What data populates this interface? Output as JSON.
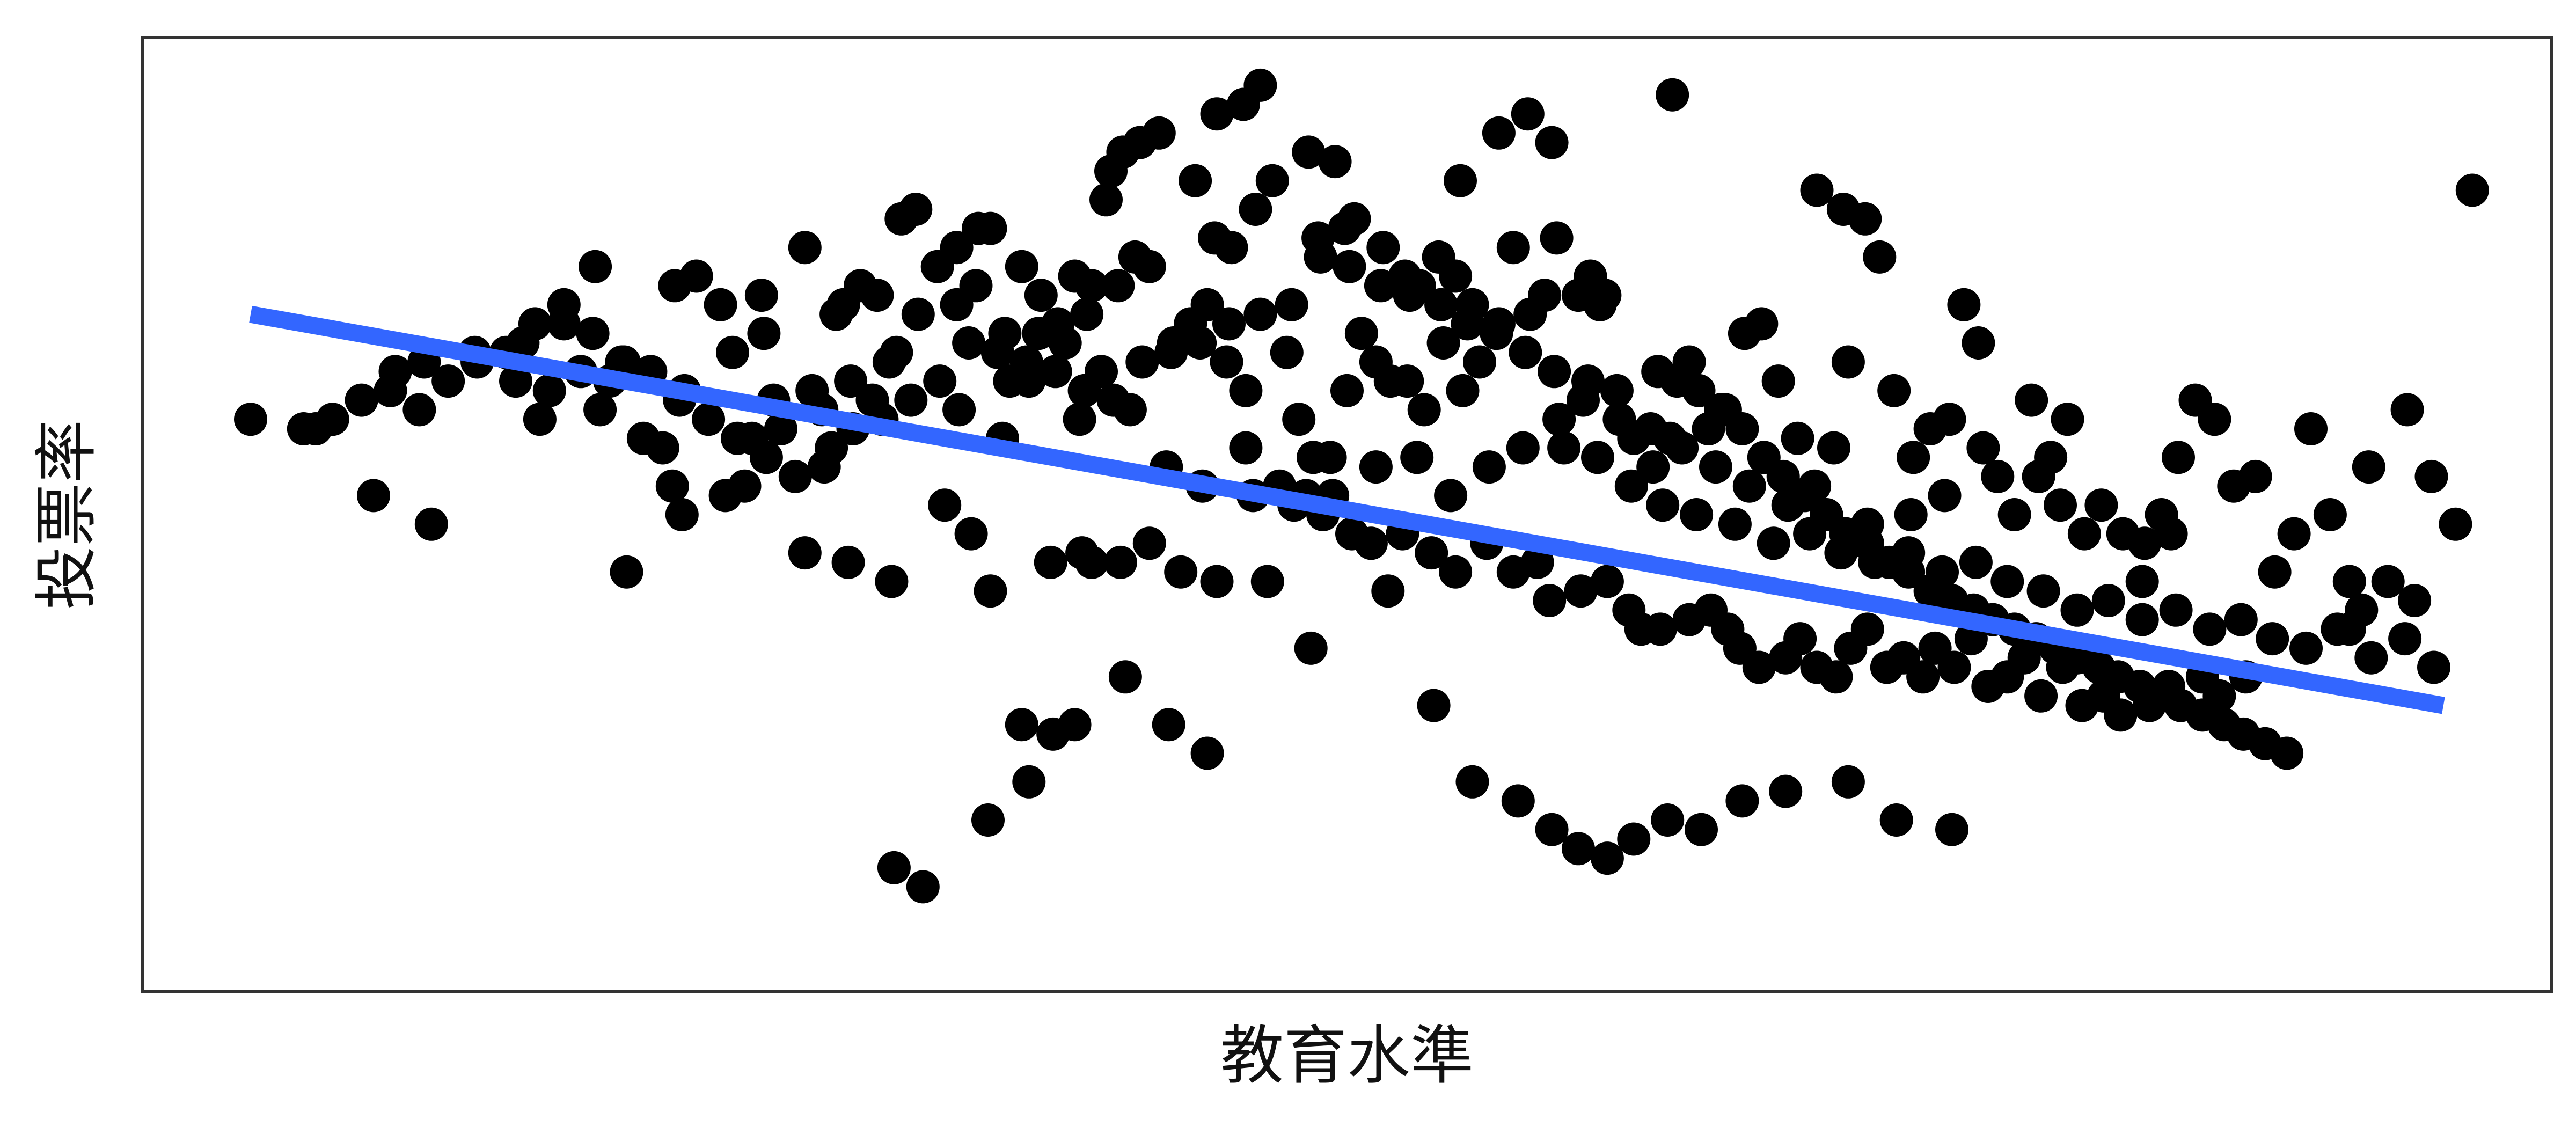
{
  "chart_data": {
    "type": "scatter",
    "title": "",
    "xlabel": "教育水準",
    "ylabel": "投票率",
    "xlim": [
      0,
      100
    ],
    "ylim": [
      0,
      100
    ],
    "axis_ticks": false,
    "grid": false,
    "legend": "none",
    "point_color": "#000000",
    "fit_line": {
      "color": "#3366ff",
      "x": [
        4.5,
        95.5
      ],
      "y": [
        71,
        30
      ]
    },
    "points": [
      [
        4.5,
        60
      ],
      [
        7.2,
        59
      ],
      [
        9.6,
        52
      ],
      [
        12,
        49
      ],
      [
        15.5,
        64
      ],
      [
        16.5,
        60
      ],
      [
        17.5,
        70
      ],
      [
        18.2,
        65
      ],
      [
        19.4,
        64
      ],
      [
        20,
        66
      ],
      [
        22,
        53
      ],
      [
        22.5,
        63
      ],
      [
        23,
        75
      ],
      [
        24,
        72
      ],
      [
        24.5,
        67
      ],
      [
        25.8,
        69
      ],
      [
        26.2,
        62
      ],
      [
        27.5,
        78
      ],
      [
        28.2,
        61
      ],
      [
        28.8,
        71
      ],
      [
        29.8,
        74
      ],
      [
        30.5,
        73
      ],
      [
        31.3,
        67
      ],
      [
        32.2,
        71
      ],
      [
        33,
        76
      ],
      [
        33.8,
        72
      ],
      [
        34.6,
        74
      ],
      [
        35.2,
        80
      ],
      [
        35.8,
        69
      ],
      [
        36,
        64
      ],
      [
        36.5,
        76
      ],
      [
        37.3,
        73
      ],
      [
        38,
        70
      ],
      [
        38.7,
        75
      ],
      [
        39.4,
        74
      ],
      [
        39.8,
        65
      ],
      [
        40,
        83
      ],
      [
        40.5,
        74
      ],
      [
        41.2,
        77
      ],
      [
        41.8,
        76
      ],
      [
        42.8,
        68
      ],
      [
        43.5,
        70
      ],
      [
        44.2,
        72
      ],
      [
        45,
        66
      ],
      [
        45.8,
        63
      ],
      [
        46.2,
        82
      ],
      [
        46.9,
        85
      ],
      [
        47.5,
        67
      ],
      [
        48,
        60
      ],
      [
        48.6,
        56
      ],
      [
        49.3,
        56
      ],
      [
        50,
        63
      ],
      [
        50.6,
        69
      ],
      [
        51.2,
        66
      ],
      [
        51.8,
        64
      ],
      [
        52.5,
        64
      ],
      [
        53.2,
        61
      ],
      [
        54,
        68
      ],
      [
        54.8,
        63
      ],
      [
        55.5,
        66
      ],
      [
        56.3,
        70
      ],
      [
        56.9,
        78
      ],
      [
        57.6,
        71
      ],
      [
        58.2,
        73
      ],
      [
        59,
        57
      ],
      [
        59.8,
        62
      ],
      [
        60.5,
        72
      ],
      [
        61.2,
        63
      ],
      [
        61.9,
        58
      ],
      [
        62.7,
        55
      ],
      [
        63.4,
        58
      ],
      [
        64.2,
        66
      ],
      [
        65,
        59
      ],
      [
        65.7,
        61
      ],
      [
        66.5,
        69
      ],
      [
        67.2,
        70
      ],
      [
        67.9,
        64
      ],
      [
        68.7,
        58
      ],
      [
        69.4,
        53
      ],
      [
        70.2,
        57
      ],
      [
        70.8,
        66
      ],
      [
        71.5,
        81
      ],
      [
        72.1,
        77
      ],
      [
        72.7,
        63
      ],
      [
        73.5,
        56
      ],
      [
        74.2,
        59
      ],
      [
        75,
        60
      ],
      [
        75.6,
        72
      ],
      [
        76.2,
        68
      ],
      [
        77,
        54
      ],
      [
        77.7,
        50
      ],
      [
        78.4,
        62
      ],
      [
        79.2,
        56
      ],
      [
        79.9,
        60
      ],
      [
        80.6,
        48
      ],
      [
        81.3,
        51
      ],
      [
        82.2,
        48
      ],
      [
        83,
        43
      ],
      [
        83.8,
        50
      ],
      [
        84.5,
        56
      ],
      [
        85.2,
        62
      ],
      [
        86,
        60
      ],
      [
        86.8,
        53
      ],
      [
        87.7,
        54
      ],
      [
        88.5,
        44
      ],
      [
        89.3,
        48
      ],
      [
        90,
        59
      ],
      [
        90.8,
        50
      ],
      [
        91.6,
        43
      ],
      [
        92.4,
        55
      ],
      [
        93.2,
        43
      ],
      [
        94,
        61
      ],
      [
        95,
        54
      ],
      [
        96.7,
        84
      ],
      [
        33.8,
        78
      ],
      [
        34.7,
        80
      ],
      [
        32.1,
        82
      ],
      [
        31.5,
        81
      ],
      [
        18.8,
        76
      ],
      [
        22.1,
        74
      ],
      [
        25.7,
        73
      ],
      [
        29.1,
        72
      ],
      [
        10.5,
        65
      ],
      [
        11.7,
        66
      ],
      [
        13.8,
        67
      ],
      [
        15.8,
        68
      ],
      [
        16.9,
        63
      ],
      [
        19,
        61
      ],
      [
        20.8,
        58
      ],
      [
        21.6,
        57
      ],
      [
        25.3,
        58
      ],
      [
        27.8,
        63
      ],
      [
        29.4,
        64
      ],
      [
        31,
        66
      ],
      [
        36.8,
        64
      ],
      [
        37.2,
        69
      ],
      [
        38.3,
        68
      ],
      [
        39.2,
        71
      ],
      [
        44.5,
        79
      ],
      [
        45.2,
        78
      ],
      [
        40.2,
        86
      ],
      [
        40.7,
        88
      ],
      [
        41.4,
        89
      ],
      [
        42.2,
        90
      ],
      [
        43.7,
        85
      ],
      [
        44.6,
        92
      ],
      [
        45.7,
        93
      ],
      [
        46.4,
        95
      ],
      [
        48.4,
        88
      ],
      [
        49.5,
        87
      ],
      [
        48.8,
        79
      ],
      [
        49.9,
        80
      ],
      [
        50.3,
        81
      ],
      [
        51.5,
        78
      ],
      [
        52.4,
        75
      ],
      [
        53,
        74
      ],
      [
        53.8,
        77
      ],
      [
        54.5,
        75
      ],
      [
        55.2,
        72
      ],
      [
        58.7,
        79
      ],
      [
        59.6,
        73
      ],
      [
        60.1,
        75
      ],
      [
        60.7,
        73
      ],
      [
        54.7,
        85
      ],
      [
        56.3,
        90
      ],
      [
        57.5,
        92
      ],
      [
        58.5,
        89
      ],
      [
        63.5,
        94
      ],
      [
        69.5,
        84
      ],
      [
        70.6,
        82
      ],
      [
        45.8,
        57
      ],
      [
        47.2,
        53
      ],
      [
        48.3,
        52
      ],
      [
        49,
        50
      ],
      [
        50.2,
        48
      ],
      [
        51,
        47
      ],
      [
        52.3,
        48
      ],
      [
        53.5,
        46
      ],
      [
        54.5,
        44
      ],
      [
        55.8,
        47
      ],
      [
        56.9,
        44
      ],
      [
        57.9,
        45
      ],
      [
        58.4,
        41
      ],
      [
        59.7,
        42
      ],
      [
        60.8,
        43
      ],
      [
        61.7,
        40
      ],
      [
        62.2,
        38
      ],
      [
        63,
        38
      ],
      [
        64.2,
        39
      ],
      [
        65.1,
        40
      ],
      [
        65.8,
        38
      ],
      [
        66.3,
        36
      ],
      [
        67.1,
        34
      ],
      [
        68.2,
        35
      ],
      [
        68.8,
        37
      ],
      [
        69.5,
        34
      ],
      [
        70.3,
        33
      ],
      [
        70.9,
        36
      ],
      [
        71.6,
        38
      ],
      [
        72.4,
        34
      ],
      [
        73.1,
        35
      ],
      [
        73.9,
        33
      ],
      [
        74.4,
        36
      ],
      [
        75.2,
        34
      ],
      [
        75.9,
        37
      ],
      [
        76.6,
        32
      ],
      [
        77.4,
        33
      ],
      [
        78.1,
        35
      ],
      [
        78.8,
        31
      ],
      [
        79.7,
        34
      ],
      [
        80.5,
        30
      ],
      [
        81.4,
        31
      ],
      [
        82.1,
        29
      ],
      [
        83.3,
        30
      ],
      [
        84.1,
        32
      ],
      [
        85.5,
        33
      ],
      [
        86.2,
        31
      ],
      [
        87.3,
        33
      ],
      [
        36.5,
        28
      ],
      [
        37.8,
        27
      ],
      [
        39.4,
        45
      ],
      [
        40.6,
        45
      ],
      [
        41.8,
        47
      ],
      [
        43.1,
        44
      ],
      [
        44.6,
        43
      ],
      [
        46.7,
        43
      ],
      [
        48.5,
        36
      ],
      [
        51.7,
        42
      ],
      [
        53.6,
        30
      ],
      [
        55.2,
        22
      ],
      [
        57.1,
        20
      ],
      [
        58.5,
        17
      ],
      [
        59.6,
        15
      ],
      [
        60.8,
        14
      ],
      [
        61.9,
        16
      ],
      [
        63.3,
        18
      ],
      [
        64.7,
        17
      ],
      [
        66.4,
        20
      ],
      [
        68.2,
        21
      ],
      [
        70.8,
        22
      ],
      [
        72.8,
        18
      ],
      [
        75.1,
        17
      ],
      [
        31.2,
        13
      ],
      [
        32.4,
        11
      ],
      [
        35.1,
        18
      ],
      [
        36.8,
        22
      ],
      [
        38.7,
        28
      ],
      [
        40.8,
        33
      ],
      [
        42.6,
        28
      ],
      [
        44.2,
        25
      ],
      [
        24.2,
        52
      ],
      [
        27.5,
        46
      ],
      [
        29.3,
        45
      ],
      [
        31.1,
        43
      ],
      [
        33.3,
        51
      ],
      [
        34.4,
        48
      ],
      [
        35.2,
        42
      ],
      [
        37.7,
        45
      ],
      [
        39,
        46
      ],
      [
        20.1,
        44
      ],
      [
        22.4,
        50
      ],
      [
        25,
        53
      ],
      [
        26.5,
        59
      ],
      [
        28.6,
        57
      ],
      [
        30.3,
        62
      ],
      [
        33.9,
        61
      ],
      [
        35.7,
        58
      ],
      [
        38.9,
        60
      ],
      [
        41,
        61
      ],
      [
        42.5,
        55
      ],
      [
        44,
        53
      ],
      [
        46.1,
        52
      ],
      [
        47.8,
        51
      ],
      [
        49.4,
        52
      ],
      [
        51.2,
        55
      ],
      [
        52.9,
        56
      ],
      [
        54.3,
        52
      ],
      [
        55.9,
        55
      ],
      [
        57.3,
        57
      ],
      [
        58.8,
        60
      ],
      [
        60.4,
        56
      ],
      [
        61.8,
        53
      ],
      [
        63.1,
        51
      ],
      [
        64.5,
        50
      ],
      [
        66.1,
        49
      ],
      [
        67.7,
        47
      ],
      [
        69.2,
        48
      ],
      [
        70.5,
        46
      ],
      [
        71.9,
        45
      ],
      [
        73.3,
        46
      ],
      [
        74.7,
        44
      ],
      [
        76.1,
        45
      ],
      [
        77.4,
        43
      ],
      [
        78.9,
        42
      ],
      [
        80.3,
        40
      ],
      [
        81.6,
        41
      ],
      [
        83,
        39
      ],
      [
        84.4,
        40
      ],
      [
        85.8,
        38
      ],
      [
        87.1,
        39
      ],
      [
        88.4,
        37
      ],
      [
        89.8,
        36
      ],
      [
        91.1,
        38
      ],
      [
        92.5,
        35
      ],
      [
        93.9,
        37
      ],
      [
        95.1,
        34
      ],
      [
        91.6,
        38
      ],
      [
        92.1,
        40
      ],
      [
        94.3,
        41
      ],
      [
        96,
        49
      ],
      [
        84.2,
        48
      ],
      [
        83.1,
        47
      ],
      [
        79.6,
        51
      ],
      [
        78.7,
        54
      ],
      [
        76.4,
        57
      ],
      [
        74.8,
        52
      ],
      [
        73.4,
        50
      ],
      [
        71.6,
        49
      ],
      [
        68.3,
        51
      ],
      [
        66.7,
        53
      ],
      [
        65.3,
        55
      ],
      [
        63.9,
        57
      ],
      [
        62.6,
        59
      ],
      [
        61.3,
        60
      ],
      [
        60,
        64
      ],
      [
        58.6,
        65
      ],
      [
        57.4,
        67
      ],
      [
        56.2,
        69
      ],
      [
        55,
        70
      ],
      [
        53.9,
        72
      ],
      [
        52.6,
        73
      ],
      [
        51.4,
        74
      ],
      [
        50.1,
        76
      ],
      [
        48.9,
        77
      ],
      [
        47.7,
        72
      ],
      [
        46.4,
        71
      ],
      [
        45.1,
        70
      ],
      [
        43.9,
        68
      ],
      [
        42.7,
        67
      ],
      [
        41.5,
        66
      ],
      [
        40.3,
        62
      ],
      [
        39.1,
        63
      ],
      [
        37.9,
        65
      ],
      [
        36.7,
        66
      ],
      [
        35.5,
        67
      ],
      [
        34.3,
        68
      ],
      [
        33.1,
        64
      ],
      [
        31.9,
        62
      ],
      [
        30.7,
        60
      ],
      [
        29.5,
        59
      ],
      [
        28.3,
        55
      ],
      [
        27.1,
        54
      ],
      [
        25.9,
        56
      ],
      [
        24.7,
        58
      ],
      [
        23.5,
        60
      ],
      [
        22.3,
        62
      ],
      [
        21.1,
        65
      ],
      [
        19.9,
        66
      ],
      [
        18.7,
        69
      ],
      [
        17.5,
        72
      ],
      [
        16.3,
        70
      ],
      [
        15.1,
        67
      ],
      [
        13.9,
        66
      ],
      [
        12.7,
        64
      ],
      [
        11.5,
        61
      ],
      [
        10.3,
        63
      ],
      [
        9.1,
        62
      ],
      [
        7.9,
        60
      ],
      [
        6.7,
        59
      ],
      [
        62.9,
        65
      ],
      [
        63.7,
        64
      ],
      [
        64.6,
        63
      ],
      [
        65.5,
        61
      ],
      [
        66.4,
        59
      ],
      [
        67.3,
        56
      ],
      [
        68.1,
        54
      ],
      [
        69,
        52
      ],
      [
        69.9,
        50
      ],
      [
        70.7,
        48
      ],
      [
        71.6,
        47
      ],
      [
        72.5,
        45
      ],
      [
        73.3,
        44
      ],
      [
        74.2,
        42
      ],
      [
        75.1,
        41
      ],
      [
        76,
        40
      ],
      [
        76.8,
        39
      ],
      [
        77.7,
        38
      ],
      [
        78.6,
        37
      ],
      [
        79.4,
        36
      ],
      [
        80.3,
        35
      ],
      [
        81.2,
        34
      ],
      [
        82,
        33
      ],
      [
        82.9,
        32
      ],
      [
        83.8,
        31
      ],
      [
        84.6,
        30
      ],
      [
        85.5,
        29
      ],
      [
        86.4,
        28
      ],
      [
        87.2,
        27
      ],
      [
        88.1,
        26
      ],
      [
        89,
        25
      ]
    ]
  }
}
